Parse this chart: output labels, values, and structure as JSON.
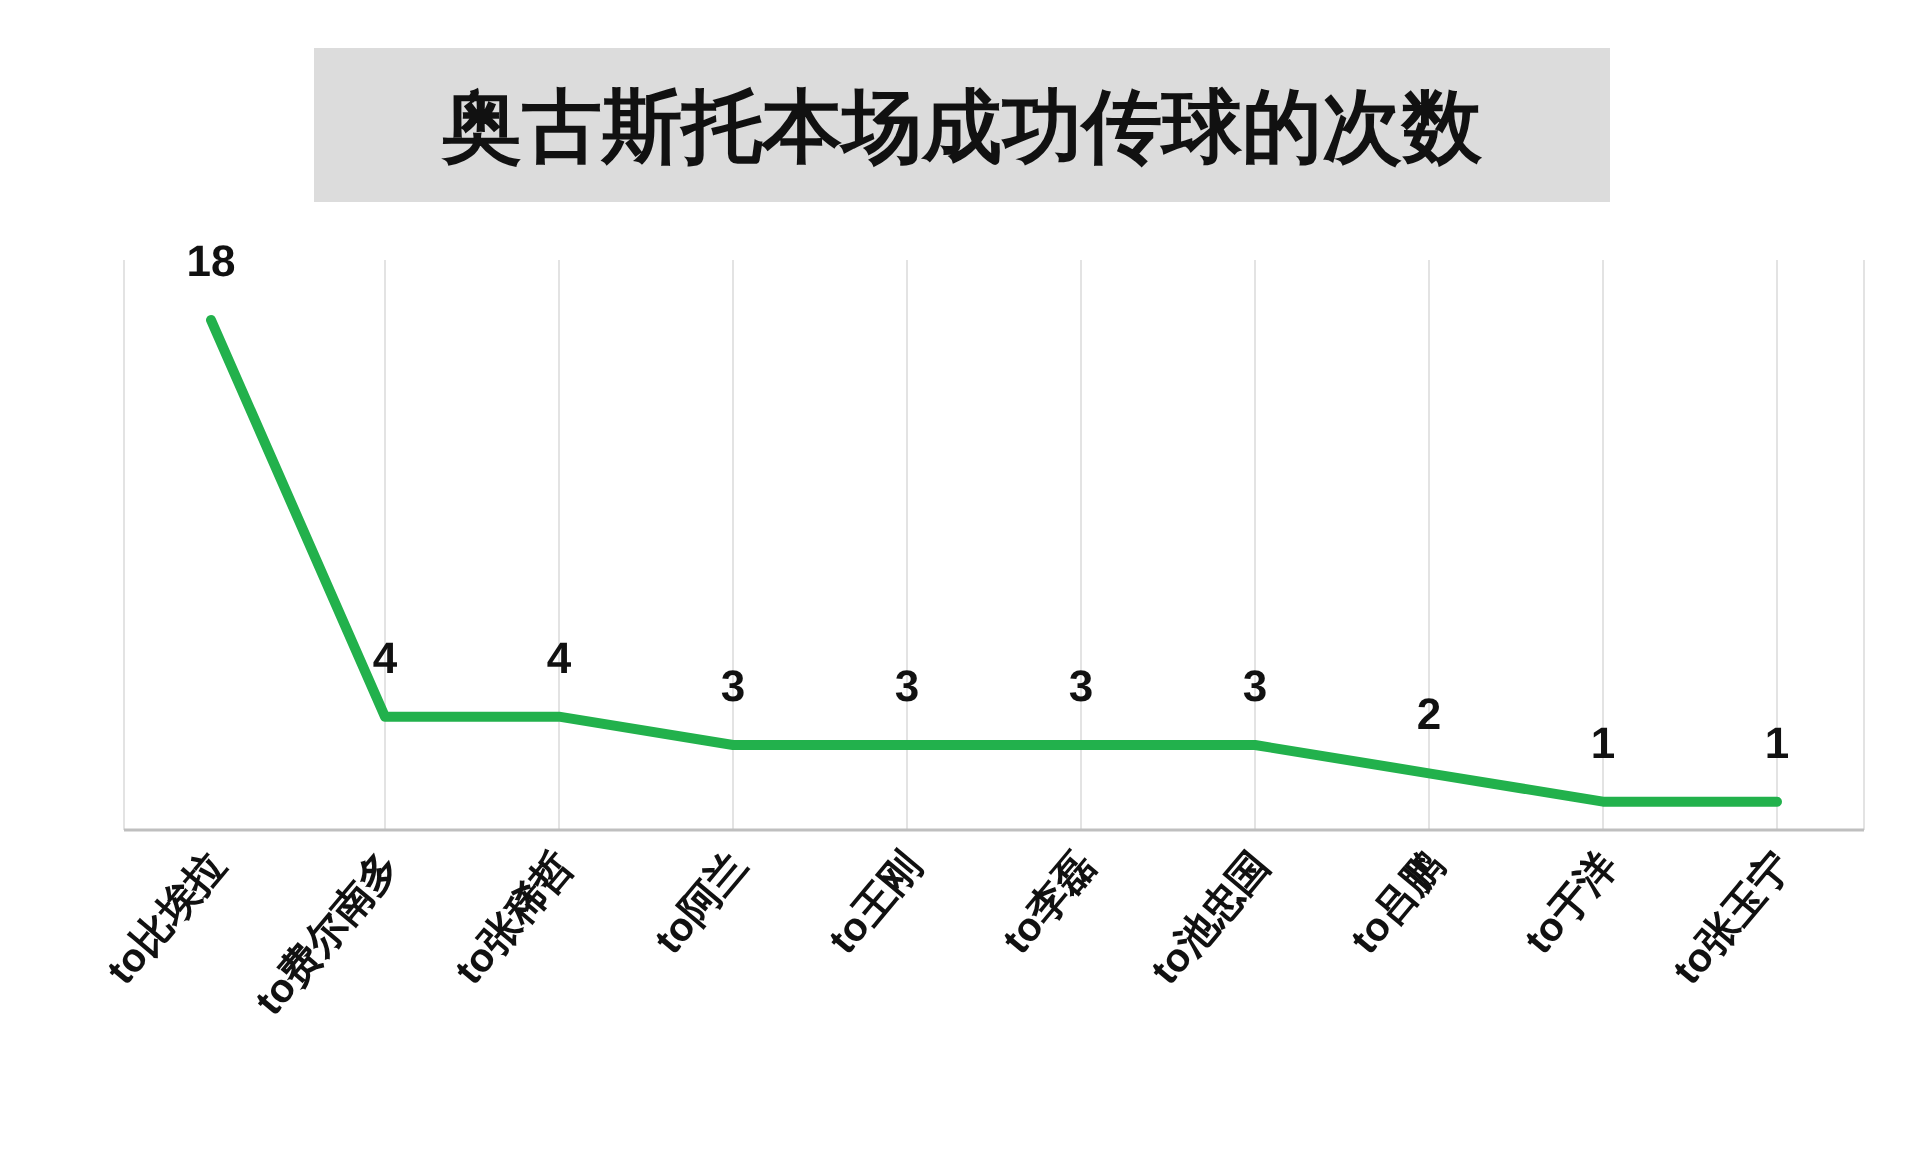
{
  "chart_data": {
    "type": "line",
    "title": "奥古斯托本场成功传球的次数",
    "categories": [
      "to比埃拉",
      "to费尔南多",
      "to张稀哲",
      "to阿兰",
      "to王刚",
      "to李磊",
      "to池忠国",
      "to吕鹏",
      "to于洋",
      "to张玉宁"
    ],
    "series": [
      {
        "color": "#22b14c",
        "values": [
          18,
          4,
          4,
          3,
          3,
          3,
          3,
          2,
          1,
          1
        ]
      }
    ],
    "data_labels": true,
    "grid": "x",
    "marker": "none",
    "line_style": "solid"
  }
}
